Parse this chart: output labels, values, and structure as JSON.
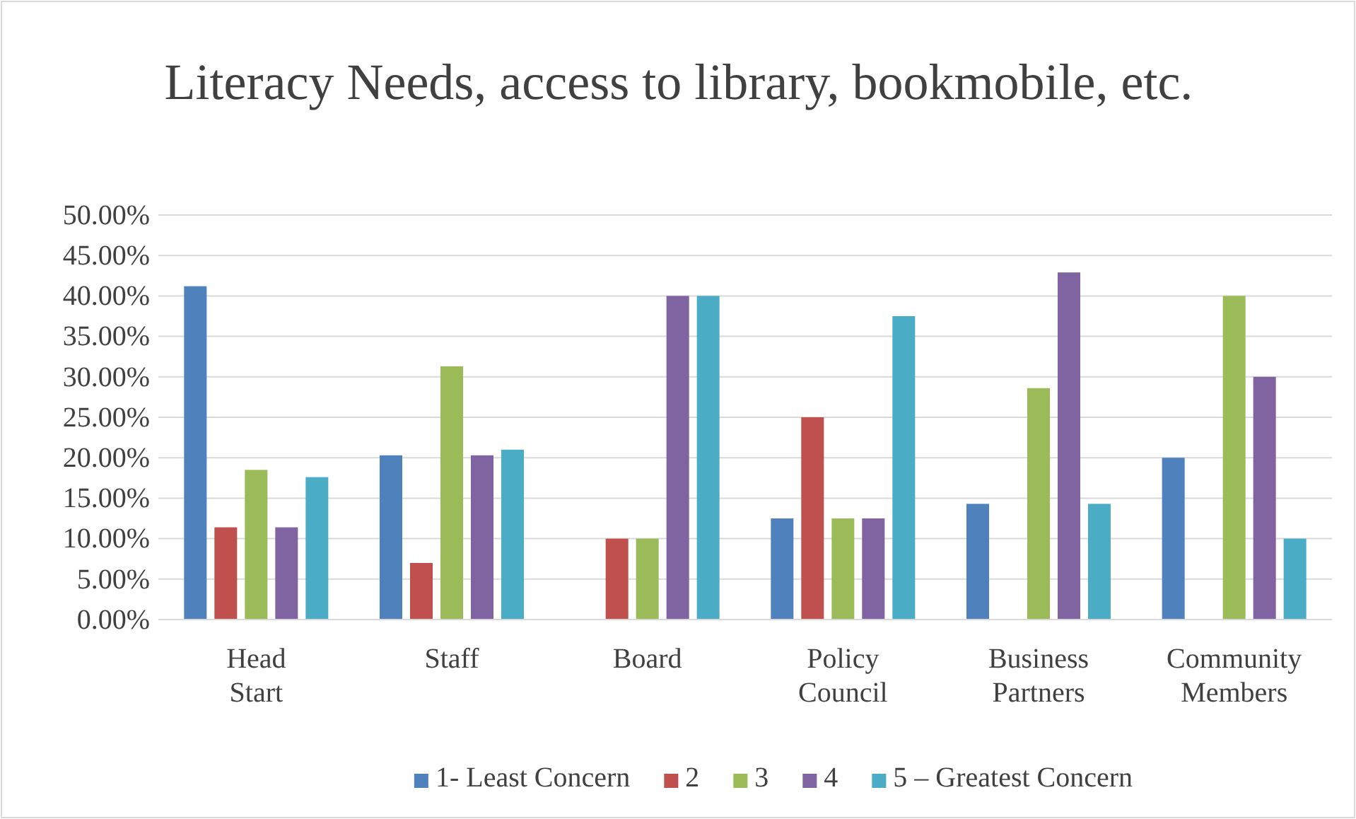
{
  "chart_data": {
    "type": "bar",
    "title": "Literacy Needs, access to library, bookmobile, etc.",
    "categories": [
      "Head Start",
      "Staff",
      "Board",
      "Policy Council",
      "Business Partners",
      "Community Members"
    ],
    "series": [
      {
        "name": "1- Least Concern",
        "color": "#4f81bd",
        "values": [
          41.2,
          20.3,
          0,
          12.5,
          14.3,
          20
        ]
      },
      {
        "name": "2",
        "color": "#c0504d",
        "values": [
          11.4,
          7.0,
          10,
          25,
          0,
          0
        ]
      },
      {
        "name": "3",
        "color": "#9bbb59",
        "values": [
          18.5,
          31.3,
          10,
          12.5,
          28.6,
          40
        ]
      },
      {
        "name": "4",
        "color": "#8064a2",
        "values": [
          11.4,
          20.3,
          40,
          12.5,
          42.9,
          30
        ]
      },
      {
        "name": "5 – Greatest Concern",
        "color": "#4bacc6",
        "values": [
          17.6,
          21.0,
          40,
          37.5,
          14.3,
          10
        ]
      }
    ],
    "ylim": [
      0,
      50
    ],
    "yticks": [
      {
        "value": 0,
        "label": "0.00%"
      },
      {
        "value": 5,
        "label": "5.00%"
      },
      {
        "value": 10,
        "label": "10.00%"
      },
      {
        "value": 15,
        "label": "15.00%"
      },
      {
        "value": 20,
        "label": "20.00%"
      },
      {
        "value": 25,
        "label": "25.00%"
      },
      {
        "value": 30,
        "label": "30.00%"
      },
      {
        "value": 35,
        "label": "35.00%"
      },
      {
        "value": 40,
        "label": "40.00%"
      },
      {
        "value": 45,
        "label": "45.00%"
      },
      {
        "value": 50,
        "label": "50.00%"
      }
    ],
    "grid": "y",
    "legend": "bottom"
  }
}
